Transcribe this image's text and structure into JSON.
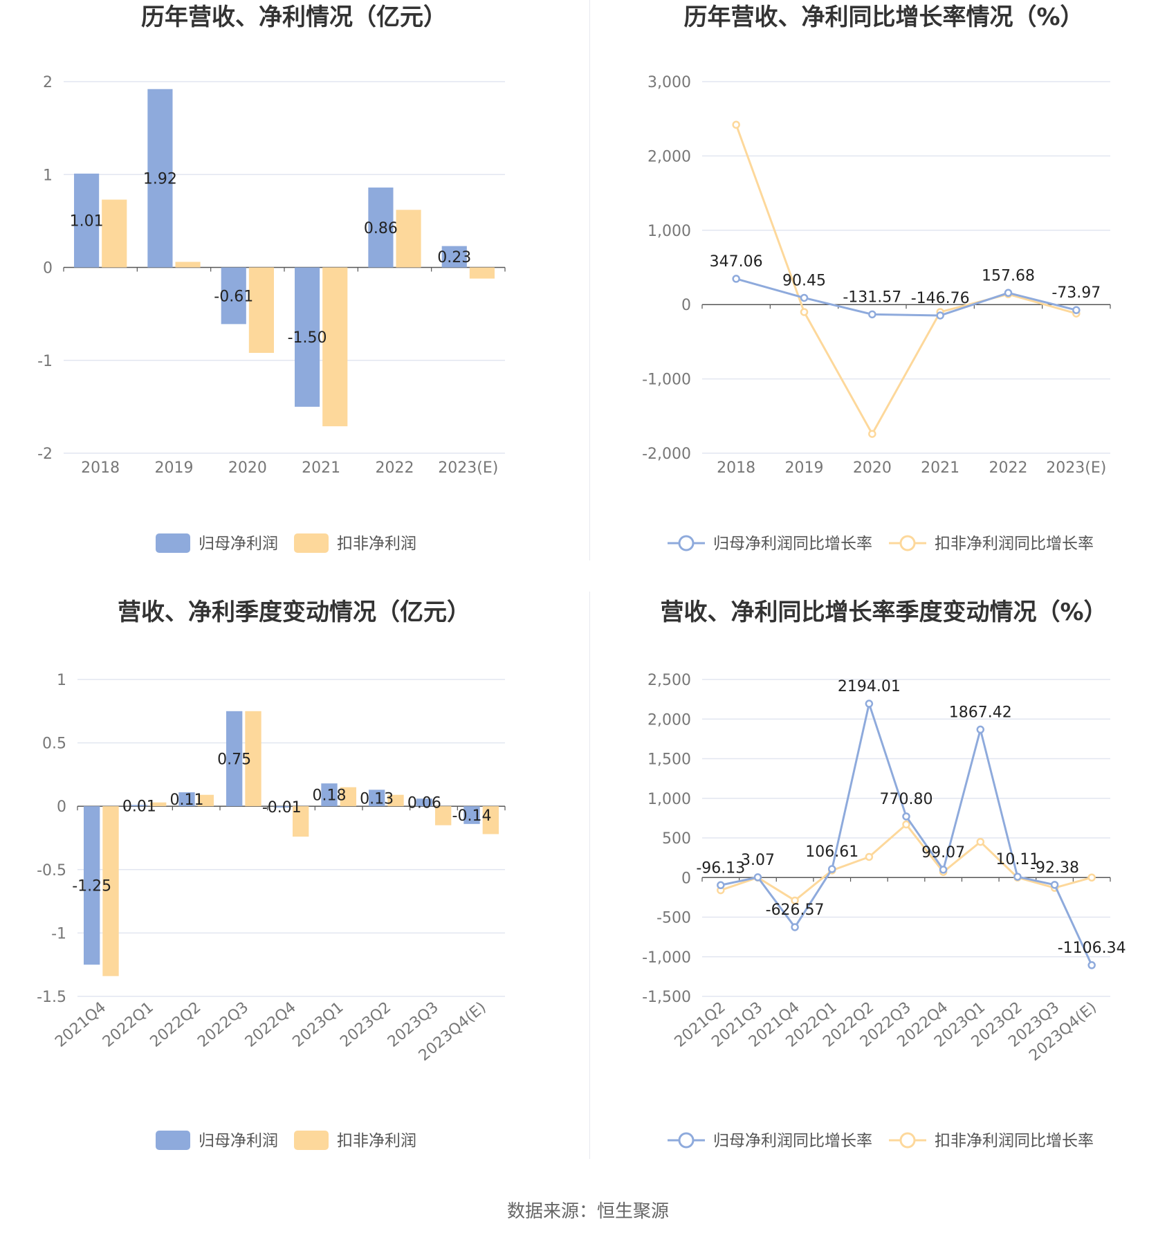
{
  "colors": {
    "blue": "#8eaadc",
    "yellow": "#fdd89b",
    "grid": "#e2e6f0",
    "axis": "#555555"
  },
  "source": "数据来源：恒生聚源",
  "chart_data": [
    {
      "type": "bar",
      "title": "历年营收、净利情况（亿元）",
      "categories": [
        "2018",
        "2019",
        "2020",
        "2021",
        "2022",
        "2023(E)"
      ],
      "series": [
        {
          "name": "归母净利润",
          "values": [
            1.01,
            1.92,
            -0.61,
            -1.5,
            0.86,
            0.23
          ],
          "labels": [
            "1.01",
            "1.92",
            "-0.61",
            "-1.50",
            "0.86",
            "0.23"
          ]
        },
        {
          "name": "扣非净利润",
          "values": [
            0.73,
            0.06,
            -0.92,
            -1.71,
            0.62,
            -0.12
          ]
        }
      ],
      "ylim": [
        -2,
        2
      ],
      "yticks": [
        2,
        1,
        0,
        -1,
        -2
      ],
      "ytick_labels": [
        "2",
        "1",
        "0",
        "-1",
        "-2"
      ],
      "grid": true,
      "legend": "bottom"
    },
    {
      "type": "line",
      "title": "历年营收、净利同比增长率情况（%）",
      "categories": [
        "2018",
        "2019",
        "2020",
        "2021",
        "2022",
        "2023(E)"
      ],
      "series": [
        {
          "name": "归母净利润同比增长率",
          "values": [
            347.06,
            90.45,
            -131.57,
            -146.76,
            157.68,
            -73.97
          ],
          "labels": [
            "347.06",
            "90.45",
            "-131.57",
            "-146.76",
            "157.68",
            "-73.97"
          ]
        },
        {
          "name": "扣非净利润同比增长率",
          "values": [
            2420,
            -100,
            -1740,
            -100,
            140,
            -120
          ]
        }
      ],
      "ylim": [
        -2000,
        3000
      ],
      "yticks": [
        3000,
        2000,
        1000,
        0,
        -1000,
        -2000
      ],
      "ytick_labels": [
        "3,000",
        "2,000",
        "1,000",
        "0",
        "-1,000",
        "-2,000"
      ],
      "grid": true,
      "legend": "bottom"
    },
    {
      "type": "bar",
      "title": "营收、净利季度变动情况（亿元）",
      "categories": [
        "2021Q4",
        "2022Q1",
        "2022Q2",
        "2022Q3",
        "2022Q4",
        "2023Q1",
        "2023Q2",
        "2023Q3",
        "2023Q4(E)"
      ],
      "series": [
        {
          "name": "归母净利润",
          "values": [
            -1.25,
            0.01,
            0.11,
            0.75,
            -0.01,
            0.18,
            0.13,
            0.06,
            -0.14
          ],
          "labels": [
            "-1.25",
            "0.01",
            "0.11",
            "0.75",
            "-0.01",
            "0.18",
            "0.13",
            "0.06",
            "-0.14"
          ]
        },
        {
          "name": "扣非净利润",
          "values": [
            -1.34,
            0.03,
            0.09,
            0.75,
            -0.24,
            0.15,
            0.09,
            -0.15,
            -0.22
          ]
        }
      ],
      "ylim": [
        -1.5,
        1
      ],
      "yticks": [
        1,
        0.5,
        0,
        -0.5,
        -1,
        -1.5
      ],
      "ytick_labels": [
        "1",
        "0.5",
        "0",
        "-0.5",
        "-1",
        "-1.5"
      ],
      "grid": true,
      "legend": "bottom"
    },
    {
      "type": "line",
      "title": "营收、净利同比增长率季度变动情况（%）",
      "categories": [
        "2021Q2",
        "2021Q3",
        "2021Q4",
        "2022Q1",
        "2022Q2",
        "2022Q3",
        "2022Q4",
        "2023Q1",
        "2023Q2",
        "2023Q3",
        "2023Q4(E)"
      ],
      "series": [
        {
          "name": "归母净利润同比增长率",
          "values": [
            -96.13,
            3.07,
            -626.57,
            106.61,
            2194.01,
            770.8,
            99.07,
            1867.42,
            10.11,
            -92.38,
            -1106.34
          ],
          "labels": [
            "-96.13",
            "3.07",
            "-626.57",
            "106.61",
            "2194.01",
            "770.80",
            "99.07",
            "1867.42",
            "10.11",
            "-92.38",
            "-1106.34"
          ]
        },
        {
          "name": "扣非净利润同比增长率",
          "values": [
            -160,
            0,
            -290,
            90,
            260,
            670,
            70,
            450,
            0,
            -130,
            0
          ]
        }
      ],
      "ylim": [
        -1500,
        2500
      ],
      "yticks": [
        2500,
        2000,
        1500,
        1000,
        500,
        0,
        -500,
        -1000,
        -1500
      ],
      "ytick_labels": [
        "2,500",
        "2,000",
        "1,500",
        "1,000",
        "500",
        "0",
        "-500",
        "-1,000",
        "-1,500"
      ],
      "grid": true,
      "legend": "bottom"
    }
  ]
}
